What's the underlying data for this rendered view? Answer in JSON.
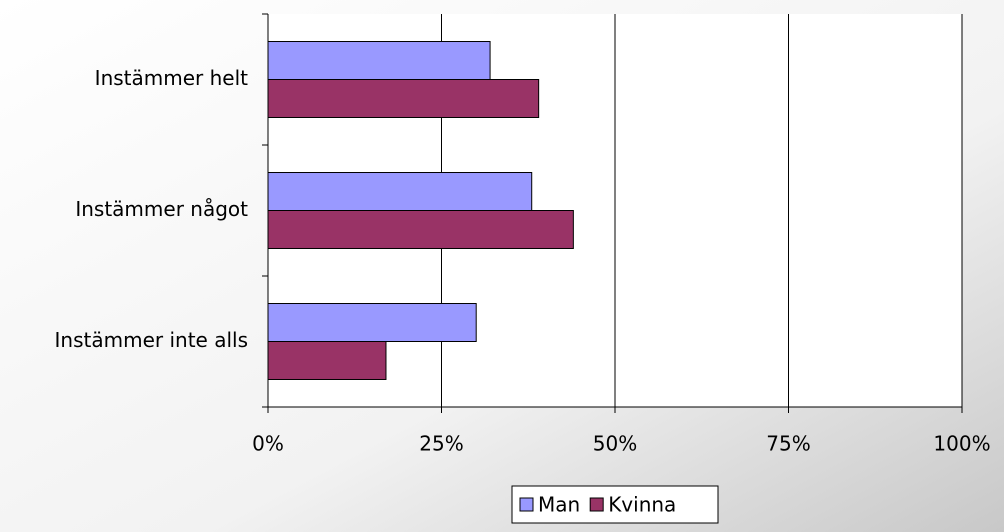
{
  "chart_data": {
    "type": "bar",
    "orientation": "horizontal",
    "categories": [
      "Instämmer helt",
      "Instämmer något",
      "Instämmer inte alls"
    ],
    "series": [
      {
        "name": "Man",
        "color": "#9999ff",
        "values": [
          32,
          38,
          30
        ]
      },
      {
        "name": "Kvinna",
        "color": "#993366",
        "values": [
          39,
          44,
          17
        ]
      }
    ],
    "xlim": [
      0,
      100
    ],
    "xticks": [
      {
        "value": 0,
        "label": "0%"
      },
      {
        "value": 25,
        "label": "25%"
      },
      {
        "value": 50,
        "label": "50%"
      },
      {
        "value": 75,
        "label": "75%"
      },
      {
        "value": 100,
        "label": "100%"
      }
    ],
    "grid": true,
    "legend": "bottom"
  }
}
